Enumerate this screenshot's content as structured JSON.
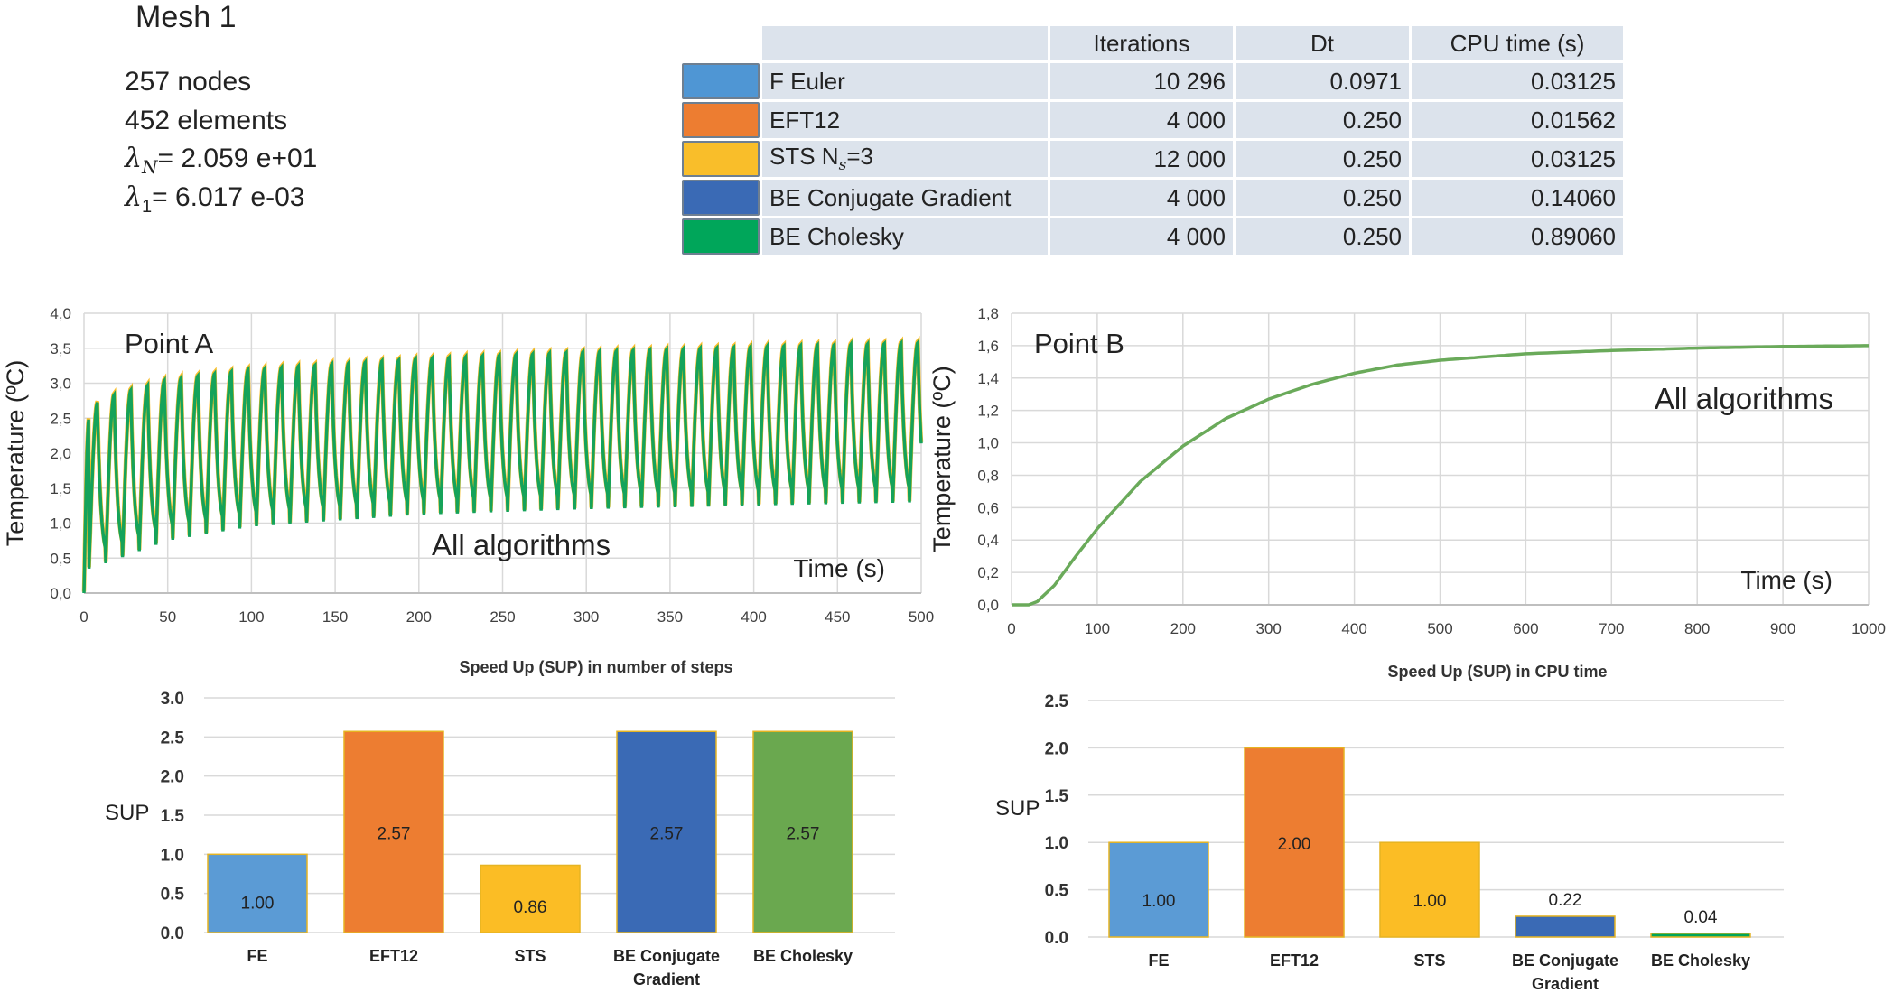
{
  "mesh": {
    "title": "Mesh 1",
    "nodes": "257 nodes",
    "elements": "452 elements",
    "lambda_n_symbol": "λ",
    "lambda_n_sub": "N",
    "lambda_n_value": "= 2.059 e+01",
    "lambda_1_symbol": "λ",
    "lambda_1_sub": "1",
    "lambda_1_value": "=  6.017 e-03"
  },
  "table": {
    "headers": [
      "Iterations",
      "Dt",
      "CPU time (s)"
    ],
    "rows": [
      {
        "method": "F Euler",
        "iterations": "10 296",
        "dt": "0.0971",
        "cpu": "0.03125",
        "color": "#4f96d4"
      },
      {
        "method": "EFT12",
        "iterations": "4 000",
        "dt": "0.250",
        "cpu": "0.01562",
        "color": "#ed7d31"
      },
      {
        "method": "STS N",
        "method_sub": "s",
        "method_suffix": "=3",
        "iterations": "12 000",
        "dt": "0.250",
        "cpu": "0.03125",
        "color": "#f9be2a"
      },
      {
        "method": "BE Conjugate Gradient",
        "iterations": "4 000",
        "dt": "0.250",
        "cpu": "0.14060",
        "color": "#3a6ab5"
      },
      {
        "method": "BE Cholesky",
        "iterations": "4 000",
        "dt": "0.250",
        "cpu": "0.89060",
        "color": "#00a65a"
      }
    ]
  },
  "chart_data": [
    {
      "type": "line",
      "annotation": "Point A",
      "annotation2": "All algorithms",
      "xlabel": "Time (s)",
      "ylabel": "Temperature (ºC)",
      "xlim": [
        0,
        500
      ],
      "ylim": [
        0,
        4.0
      ],
      "xticks": [
        "0",
        "50",
        "100",
        "150",
        "200",
        "250",
        "300",
        "350",
        "400",
        "450",
        "500"
      ],
      "yticks": [
        "0,0",
        "0,5",
        "1,0",
        "1,5",
        "2,0",
        "2,5",
        "3,0",
        "3,5",
        "4,0"
      ],
      "grid": true,
      "period": 10,
      "max_envelope": [
        [
          0,
          2.5
        ],
        [
          10,
          2.78
        ],
        [
          50,
          3.05
        ],
        [
          100,
          3.2
        ],
        [
          200,
          3.35
        ],
        [
          300,
          3.45
        ],
        [
          400,
          3.52
        ],
        [
          500,
          3.58
        ]
      ],
      "min_envelope": [
        [
          5,
          0.35
        ],
        [
          10,
          0.4
        ],
        [
          50,
          0.75
        ],
        [
          100,
          0.95
        ],
        [
          200,
          1.12
        ],
        [
          300,
          1.2
        ],
        [
          400,
          1.25
        ],
        [
          500,
          1.3
        ]
      ],
      "series": [
        {
          "color": "#15a35a"
        }
      ],
      "accent_color": "#f9be2a"
    },
    {
      "type": "line",
      "annotation": "Point B",
      "annotation2": "All algorithms",
      "xlabel": "Time (s)",
      "ylabel": "Temperature (ºC)",
      "xlim": [
        0,
        1000
      ],
      "ylim": [
        0,
        1.8
      ],
      "xticks": [
        "0",
        "100",
        "200",
        "300",
        "400",
        "500",
        "600",
        "700",
        "800",
        "900",
        "1000"
      ],
      "yticks": [
        "0,0",
        "0,2",
        "0,4",
        "0,6",
        "0,8",
        "1,0",
        "1,2",
        "1,4",
        "1,6",
        "1,8"
      ],
      "grid": true,
      "points": [
        [
          0,
          0
        ],
        [
          20,
          0.0
        ],
        [
          30,
          0.02
        ],
        [
          50,
          0.12
        ],
        [
          75,
          0.3
        ],
        [
          100,
          0.47
        ],
        [
          150,
          0.76
        ],
        [
          200,
          0.98
        ],
        [
          250,
          1.15
        ],
        [
          300,
          1.27
        ],
        [
          350,
          1.36
        ],
        [
          400,
          1.43
        ],
        [
          450,
          1.48
        ],
        [
          500,
          1.51
        ],
        [
          600,
          1.55
        ],
        [
          700,
          1.57
        ],
        [
          800,
          1.585
        ],
        [
          900,
          1.595
        ],
        [
          1000,
          1.6
        ]
      ],
      "series": [
        {
          "color": "#6aaa5a"
        }
      ]
    },
    {
      "type": "bar",
      "title": "Speed Up (SUP) in number of steps",
      "ylabel": "SUP",
      "categories": [
        [
          "FE"
        ],
        [
          "EFT12"
        ],
        [
          "STS"
        ],
        [
          "BE Conjugate",
          "Gradient"
        ],
        [
          "BE Cholesky"
        ]
      ],
      "values": [
        1.0,
        2.57,
        0.86,
        2.57,
        2.57
      ],
      "labels": [
        "1.00",
        "2.57",
        "0.86",
        "2.57",
        "2.57"
      ],
      "colors": [
        "#5b9bd5",
        "#ed7d31",
        "#fbbd25",
        "#3a6ab5",
        "#6aa84f"
      ],
      "ylim": [
        0,
        3.0
      ],
      "yticks": [
        "0.0",
        "0.5",
        "1.0",
        "1.5",
        "2.0",
        "2.5",
        "3.0"
      ]
    },
    {
      "type": "bar",
      "title": "Speed Up (SUP) in CPU time",
      "ylabel": "SUP",
      "categories": [
        [
          "FE"
        ],
        [
          "EFT12"
        ],
        [
          "STS"
        ],
        [
          "BE Conjugate",
          "Gradient"
        ],
        [
          "BE Cholesky"
        ]
      ],
      "values": [
        1.0,
        2.0,
        1.0,
        0.22,
        0.04
      ],
      "labels": [
        "1.00",
        "2.00",
        "1.00",
        "0.22",
        "0.04"
      ],
      "colors": [
        "#5b9bd5",
        "#ed7d31",
        "#fbbd25",
        "#3a6ab5",
        "#00a65a"
      ],
      "ylim": [
        0,
        2.5
      ],
      "yticks": [
        "0.0",
        "0.5",
        "1.0",
        "1.5",
        "2.0",
        "2.5"
      ]
    }
  ]
}
